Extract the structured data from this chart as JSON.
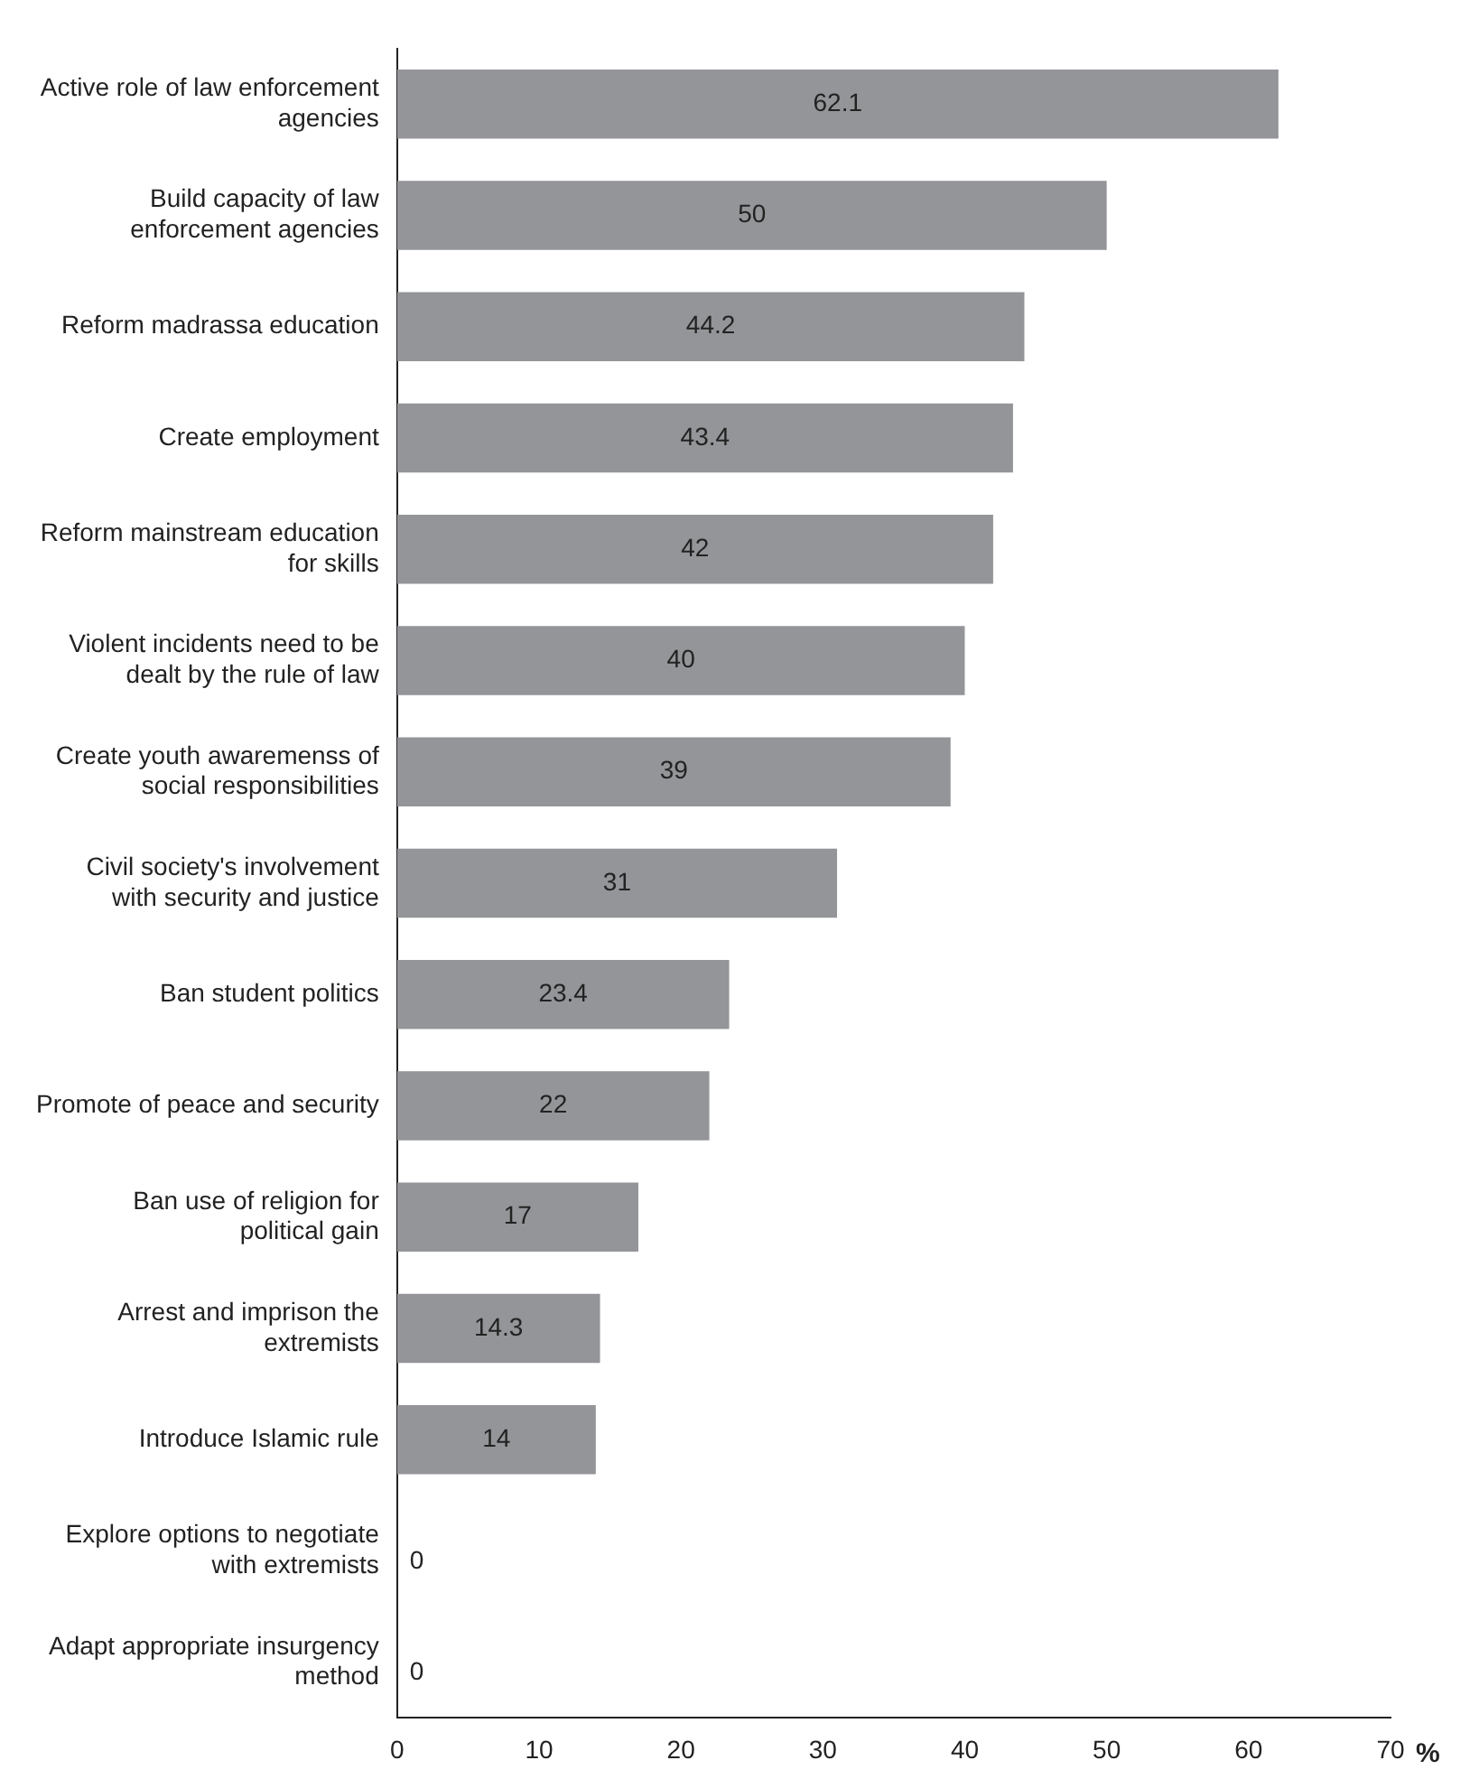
{
  "chart_data": {
    "type": "bar",
    "orientation": "horizontal",
    "xlabel": "%",
    "categories": [
      "Active role of law enforcement agencies",
      "Build capacity of law enforcement agencies",
      "Reform madrassa education",
      "Create employment",
      "Reform mainstream education for skills",
      "Violent incidents need to be dealt by the rule of law",
      "Create youth awaremenss of social responsibilities",
      "Civil society's involvement with security and justice",
      "Ban student politics",
      "Promote of peace and security",
      "Ban use of religion for political gain",
      "Arrest and imprison the extremists",
      "Introduce Islamic rule",
      "Explore options to negotiate with extremists",
      "Adapt appropriate insurgency method"
    ],
    "values": [
      62.1,
      50,
      44.2,
      43.4,
      42,
      40,
      39,
      31,
      23.4,
      22,
      17,
      14.3,
      14,
      0,
      0
    ],
    "color": "#939598",
    "xlim": [
      0,
      70
    ],
    "xticks": [
      0,
      10,
      20,
      30,
      40,
      50,
      60,
      70
    ],
    "data_labels": true,
    "grid": false,
    "legend": false
  }
}
